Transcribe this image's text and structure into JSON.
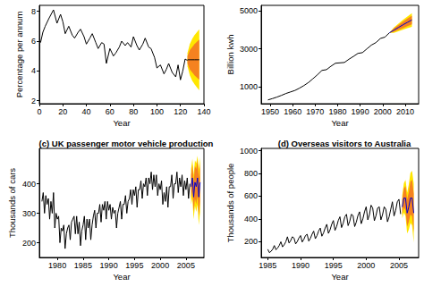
{
  "chart_data": [
    {
      "type": "line",
      "x_label": "Year",
      "y_label": "Percentage per annum",
      "xlim": [
        0,
        140
      ],
      "xticks": [
        0,
        20,
        40,
        60,
        80,
        100,
        120,
        140
      ],
      "ylim": [
        1.8,
        8.4
      ],
      "yticks": [
        2,
        4,
        6,
        8
      ],
      "grid": false,
      "series": [
        {
          "color": "#000000",
          "x": [
            1,
            3,
            5,
            8,
            10,
            12,
            15,
            18,
            20,
            22,
            25,
            28,
            30,
            33,
            35,
            38,
            40,
            43,
            45,
            48,
            50,
            53,
            55,
            57,
            60,
            63,
            65,
            68,
            70,
            73,
            75,
            78,
            80,
            83,
            85,
            88,
            90,
            93,
            95,
            98,
            100,
            103,
            106,
            108,
            110,
            113,
            116,
            118,
            120,
            122,
            124,
            126
          ],
          "values": [
            5.9,
            6.6,
            7.0,
            7.5,
            7.8,
            8.1,
            7.2,
            7.8,
            7.3,
            6.5,
            7.0,
            6.4,
            6.2,
            6.6,
            6.8,
            6.3,
            5.8,
            6.2,
            6.5,
            5.9,
            5.5,
            5.9,
            5.8,
            4.5,
            5.5,
            5.0,
            5.2,
            5.6,
            6.0,
            5.7,
            5.9,
            5.6,
            6.3,
            5.7,
            5.4,
            5.8,
            6.2,
            5.6,
            5.5,
            4.9,
            4.2,
            4.4,
            3.8,
            4.1,
            4.5,
            3.9,
            3.6,
            4.4,
            3.4,
            4.0,
            4.8,
            4.7
          ]
        },
        {
          "color": "#000000",
          "x": [
            126,
            128,
            130,
            132,
            134,
            136
          ],
          "values": [
            4.75,
            4.75,
            4.75,
            4.75,
            4.75,
            4.75
          ]
        }
      ],
      "intervals": [
        {
          "color": "#ffe600",
          "x": [
            126,
            128,
            130,
            132,
            134,
            136
          ],
          "lower": [
            4.3,
            3.7,
            3.35,
            3.1,
            2.9,
            2.7
          ],
          "upper": [
            5.2,
            5.8,
            6.15,
            6.4,
            6.6,
            6.8
          ]
        },
        {
          "color": "#f58220",
          "x": [
            126,
            128,
            130,
            132,
            134,
            136
          ],
          "lower": [
            4.5,
            4.1,
            3.9,
            3.7,
            3.55,
            3.4
          ],
          "upper": [
            5.0,
            5.4,
            5.6,
            5.8,
            5.95,
            6.1
          ]
        }
      ]
    },
    {
      "type": "line",
      "x_label": "Year",
      "y_label": "Billion kwh",
      "xlim": [
        1946,
        2016
      ],
      "xticks": [
        1950,
        1960,
        1970,
        1980,
        1990,
        2000,
        2010
      ],
      "ylim": [
        100,
        5300
      ],
      "yticks": [
        1000,
        3000,
        5000
      ],
      "grid": false,
      "series": [
        {
          "color": "#000000",
          "x": [
            1949,
            1951,
            1953,
            1955,
            1957,
            1959,
            1961,
            1963,
            1965,
            1967,
            1969,
            1971,
            1973,
            1975,
            1977,
            1979,
            1981,
            1983,
            1985,
            1987,
            1989,
            1991,
            1993,
            1995,
            1997,
            1999,
            2001,
            2003
          ],
          "values": [
            300,
            370,
            450,
            540,
            640,
            720,
            800,
            920,
            1060,
            1220,
            1420,
            1630,
            1860,
            1900,
            2080,
            2240,
            2260,
            2280,
            2450,
            2600,
            2760,
            2800,
            3000,
            3200,
            3330,
            3550,
            3620,
            3850
          ]
        },
        {
          "color": "#0000cd",
          "x": [
            2003,
            2005,
            2007,
            2009,
            2011,
            2013
          ],
          "values": [
            3850,
            3990,
            4130,
            4270,
            4400,
            4530
          ]
        }
      ],
      "intervals": [
        {
          "color": "#ffe600",
          "x": [
            2003,
            2005,
            2007,
            2009,
            2011,
            2013
          ],
          "lower": [
            3850,
            3850,
            3930,
            4010,
            4090,
            4170
          ],
          "upper": [
            3850,
            4130,
            4330,
            4530,
            4710,
            4890
          ]
        },
        {
          "color": "#f58220",
          "x": [
            2003,
            2005,
            2007,
            2009,
            2011,
            2013
          ],
          "lower": [
            3850,
            3900,
            4000,
            4100,
            4200,
            4300
          ],
          "upper": [
            3850,
            4080,
            4260,
            4440,
            4600,
            4760
          ]
        }
      ]
    },
    {
      "type": "line",
      "title": "(c) UK passenger motor vehicle production",
      "x_label": "Year",
      "y_label": "Thousands of cars",
      "xlim": [
        1976.5,
        2008.5
      ],
      "xticks": [
        1980,
        1985,
        1990,
        1995,
        2000,
        2005
      ],
      "ylim": [
        150,
        520
      ],
      "yticks": [
        200,
        300,
        400
      ],
      "grid": false,
      "series": [
        {
          "color": "#000000",
          "x": [
            1977,
            1977.25,
            1977.5,
            1977.75,
            1978,
            1978.25,
            1978.5,
            1978.75,
            1979,
            1979.25,
            1979.5,
            1979.75,
            1980,
            1980.25,
            1980.5,
            1980.75,
            1981,
            1981.25,
            1981.5,
            1981.75,
            1982,
            1982.25,
            1982.5,
            1982.75,
            1983,
            1983.25,
            1983.5,
            1983.75,
            1984,
            1984.25,
            1984.5,
            1984.75,
            1985,
            1985.25,
            1985.5,
            1985.75,
            1986,
            1986.25,
            1986.5,
            1986.75,
            1987,
            1987.25,
            1987.5,
            1987.75,
            1988,
            1988.25,
            1988.5,
            1988.75,
            1989,
            1989.25,
            1989.5,
            1989.75,
            1990,
            1990.25,
            1990.5,
            1990.75,
            1991,
            1991.25,
            1991.5,
            1991.75,
            1992,
            1992.25,
            1992.5,
            1992.75,
            1993,
            1993.25,
            1993.5,
            1993.75,
            1994,
            1994.25,
            1994.5,
            1994.75,
            1995,
            1995.25,
            1995.5,
            1995.75,
            1996,
            1996.25,
            1996.5,
            1996.75,
            1997,
            1997.25,
            1997.5,
            1997.75,
            1998,
            1998.25,
            1998.5,
            1998.75,
            1999,
            1999.25,
            1999.5,
            1999.75,
            2000,
            2000.25,
            2000.5,
            2000.75,
            2001,
            2001.25,
            2001.5,
            2001.75,
            2002,
            2002.25,
            2002.5,
            2002.75,
            2003,
            2003.25,
            2003.5,
            2003.75,
            2004,
            2004.25,
            2004.5,
            2004.75,
            2005,
            2005.25,
            2005.5,
            2005.75
          ],
          "values": [
            340,
            370,
            300,
            360,
            330,
            350,
            280,
            340,
            300,
            370,
            250,
            300,
            280,
            290,
            200,
            250,
            240,
            260,
            180,
            230,
            250,
            260,
            210,
            270,
            280,
            290,
            230,
            290,
            230,
            270,
            190,
            240,
            260,
            290,
            210,
            280,
            250,
            280,
            210,
            260,
            290,
            310,
            250,
            300,
            300,
            330,
            270,
            330,
            310,
            340,
            280,
            340,
            310,
            330,
            280,
            320,
            300,
            310,
            250,
            300,
            320,
            340,
            280,
            330,
            330,
            360,
            300,
            340,
            350,
            380,
            330,
            380,
            360,
            390,
            320,
            380,
            380,
            410,
            350,
            400,
            390,
            420,
            360,
            420,
            400,
            440,
            380,
            430,
            390,
            430,
            360,
            400,
            380,
            410,
            330,
            370,
            340,
            390,
            320,
            390,
            390,
            430,
            350,
            400,
            400,
            440,
            370,
            420,
            390,
            430,
            360,
            410,
            380,
            420,
            350,
            400
          ]
        },
        {
          "color": "#0000cd",
          "x": [
            2006,
            2006.25,
            2006.5,
            2006.75,
            2007,
            2007.25,
            2007.5,
            2007.75
          ],
          "values": [
            390,
            420,
            355,
            405,
            390,
            420,
            355,
            405
          ]
        }
      ],
      "intervals": [
        {
          "color": "#ffe600",
          "x": [
            2006,
            2006.25,
            2006.5,
            2006.75,
            2007,
            2007.25,
            2007.5,
            2007.75
          ],
          "lower": [
            330,
            350,
            280,
            325,
            305,
            330,
            260,
            305
          ],
          "upper": [
            450,
            485,
            430,
            480,
            470,
            495,
            450,
            490
          ]
        },
        {
          "color": "#f58220",
          "x": [
            2006,
            2006.25,
            2006.5,
            2006.75,
            2007,
            2007.25,
            2007.5,
            2007.75
          ],
          "lower": [
            350,
            375,
            305,
            350,
            330,
            360,
            290,
            340
          ],
          "upper": [
            430,
            465,
            405,
            460,
            450,
            480,
            420,
            470
          ]
        }
      ]
    },
    {
      "type": "line",
      "title": "(d) Overseas visitors to Australia",
      "x_label": "Year",
      "y_label": "Thousands of people",
      "xlim": [
        1984,
        2008
      ],
      "xticks": [
        1985,
        1990,
        1995,
        2000,
        2005
      ],
      "ylim": [
        60,
        1020
      ],
      "yticks": [
        200,
        400,
        600,
        800,
        1000
      ],
      "grid": false,
      "series": [
        {
          "color": "#000000",
          "x": [
            1985,
            1985.25,
            1985.5,
            1985.75,
            1986,
            1986.25,
            1986.5,
            1986.75,
            1987,
            1987.25,
            1987.5,
            1987.75,
            1988,
            1988.25,
            1988.5,
            1988.75,
            1989,
            1989.25,
            1989.5,
            1989.75,
            1990,
            1990.25,
            1990.5,
            1990.75,
            1991,
            1991.25,
            1991.5,
            1991.75,
            1992,
            1992.25,
            1992.5,
            1992.75,
            1993,
            1993.25,
            1993.5,
            1993.75,
            1994,
            1994.25,
            1994.5,
            1994.75,
            1995,
            1995.25,
            1995.5,
            1995.75,
            1996,
            1996.25,
            1996.5,
            1996.75,
            1997,
            1997.25,
            1997.5,
            1997.75,
            1998,
            1998.25,
            1998.5,
            1998.75,
            1999,
            1999.25,
            1999.5,
            1999.75,
            2000,
            2000.25,
            2000.5,
            2000.75,
            2001,
            2001.25,
            2001.5,
            2001.75,
            2002,
            2002.25,
            2002.5,
            2002.75,
            2003,
            2003.25,
            2003.5,
            2003.75,
            2004,
            2004.25,
            2004.5,
            2004.75,
            2005,
            2005.25
          ],
          "values": [
            132,
            102,
            114,
            132,
            165,
            128,
            143,
            165,
            198,
            153,
            171,
            198,
            242,
            187,
            209,
            242,
            231,
            179,
            200,
            231,
            253,
            196,
            219,
            253,
            264,
            204,
            228,
            264,
            292,
            225,
            252,
            292,
            319,
            247,
            276,
            319,
            352,
            272,
            304,
            352,
            385,
            298,
            333,
            385,
            418,
            323,
            361,
            418,
            440,
            340,
            380,
            440,
            429,
            332,
            371,
            429,
            462,
            357,
            399,
            462,
            506,
            391,
            437,
            520,
            495,
            383,
            428,
            495,
            506,
            391,
            437,
            506,
            484,
            374,
            418,
            484,
            550,
            425,
            475,
            550,
            572,
            442
          ]
        },
        {
          "color": "#0000cd",
          "x": [
            2005.5,
            2005.75,
            2006,
            2006.25,
            2006.5,
            2006.75,
            2007,
            2007.25
          ],
          "values": [
            504,
            583,
            583,
            451,
            504,
            583,
            583,
            451
          ]
        }
      ],
      "intervals": [
        {
          "color": "#ffe600",
          "x": [
            2005.5,
            2005.75,
            2006,
            2006.25,
            2006.5,
            2006.75,
            2007,
            2007.25
          ],
          "lower": [
            404,
            453,
            423,
            271,
            304,
            363,
            343,
            191
          ],
          "upper": [
            604,
            713,
            743,
            631,
            704,
            803,
            823,
            711
          ]
        },
        {
          "color": "#f58220",
          "x": [
            2005.5,
            2005.75,
            2006,
            2006.25,
            2006.5,
            2006.75,
            2007,
            2007.25
          ],
          "lower": [
            439,
            498,
            478,
            331,
            374,
            438,
            423,
            281
          ],
          "upper": [
            569,
            668,
            688,
            571,
            634,
            728,
            743,
            621
          ]
        }
      ]
    }
  ]
}
